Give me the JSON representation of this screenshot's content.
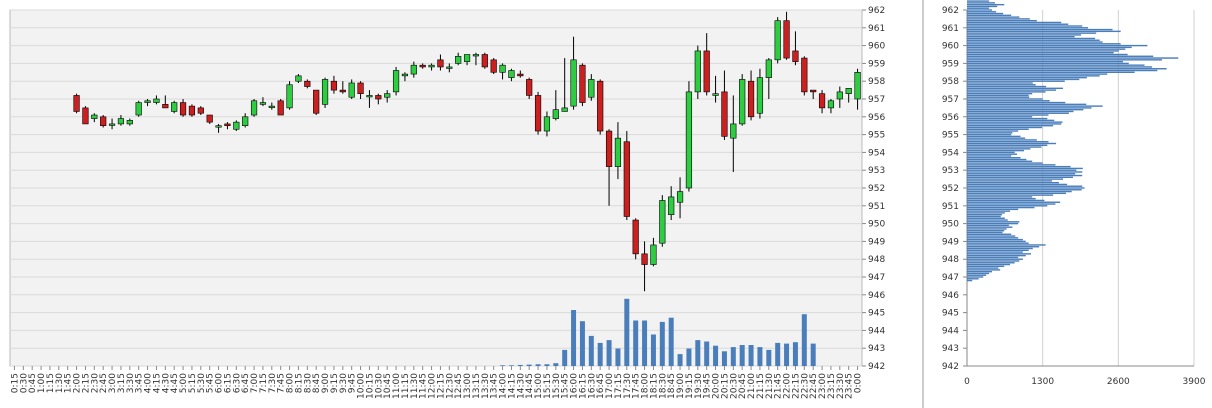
{
  "chart_data": [
    {
      "type": "candlestick",
      "ylim": [
        942,
        962
      ],
      "y_ticks": [
        942,
        943,
        944,
        945,
        946,
        947,
        948,
        949,
        950,
        951,
        952,
        953,
        954,
        955,
        956,
        957,
        958,
        959,
        960,
        961,
        962
      ],
      "grid": true,
      "up_color": "#2ECC40",
      "down_color": "#CC1F1F",
      "background_color": "#F2F2F2",
      "volume_color": "#4A7EBB",
      "volume_axis_max": 1000,
      "x_labels": [
        "0:15",
        "0:30",
        "0:45",
        "1:00",
        "1:15",
        "1:30",
        "1:45",
        "2:00",
        "2:15",
        "2:30",
        "2:45",
        "3:00",
        "3:15",
        "3:30",
        "3:45",
        "4:00",
        "4:15",
        "4:30",
        "4:45",
        "5:00",
        "5:15",
        "5:30",
        "5:45",
        "6:00",
        "6:15",
        "6:30",
        "6:45",
        "7:00",
        "7:15",
        "7:30",
        "7:45",
        "8:00",
        "8:15",
        "8:30",
        "8:45",
        "9:00",
        "9:15",
        "9:30",
        "9:45",
        "10:00",
        "10:15",
        "10:30",
        "10:45",
        "11:00",
        "11:15",
        "11:30",
        "11:45",
        "12:00",
        "12:15",
        "12:30",
        "12:45",
        "13:00",
        "13:15",
        "13:30",
        "13:45",
        "14:00",
        "14:15",
        "14:30",
        "14:45",
        "15:00",
        "15:15",
        "15:30",
        "15:45",
        "16:00",
        "16:15",
        "16:30",
        "16:45",
        "17:00",
        "17:15",
        "17:30",
        "17:45",
        "18:00",
        "18:15",
        "18:30",
        "18:45",
        "19:00",
        "19:15",
        "19:30",
        "19:45",
        "20:00",
        "20:15",
        "20:30",
        "20:45",
        "21:00",
        "21:15",
        "21:30",
        "21:45",
        "22:00",
        "22:15",
        "22:30",
        "22:45",
        "23:00",
        "23:15",
        "23:30",
        "23:45",
        "0:00"
      ],
      "candles": [
        {
          "x": "2:00",
          "o": 957.2,
          "h": 957.3,
          "l": 956.2,
          "c": 956.3
        },
        {
          "x": "2:15",
          "o": 956.5,
          "h": 956.6,
          "l": 955.6,
          "c": 955.6
        },
        {
          "x": "2:30",
          "o": 955.9,
          "h": 956.2,
          "l": 955.7,
          "c": 956.1
        },
        {
          "x": "2:45",
          "o": 956.0,
          "h": 956.1,
          "l": 955.4,
          "c": 955.5
        },
        {
          "x": "3:00",
          "o": 955.6,
          "h": 955.9,
          "l": 955.3,
          "c": 955.6
        },
        {
          "x": "3:15",
          "o": 955.6,
          "h": 956.1,
          "l": 955.5,
          "c": 955.9
        },
        {
          "x": "3:30",
          "o": 955.6,
          "h": 955.9,
          "l": 955.5,
          "c": 955.8
        },
        {
          "x": "3:45",
          "o": 956.1,
          "h": 956.9,
          "l": 956.0,
          "c": 956.8
        },
        {
          "x": "4:00",
          "o": 956.8,
          "h": 957.0,
          "l": 956.6,
          "c": 956.9
        },
        {
          "x": "4:15",
          "o": 956.8,
          "h": 957.2,
          "l": 956.7,
          "c": 957.0
        },
        {
          "x": "4:30",
          "o": 956.7,
          "h": 957.2,
          "l": 956.5,
          "c": 956.5
        },
        {
          "x": "4:45",
          "o": 956.3,
          "h": 956.9,
          "l": 956.2,
          "c": 956.8
        },
        {
          "x": "5:00",
          "o": 956.8,
          "h": 957.0,
          "l": 956.0,
          "c": 956.1
        },
        {
          "x": "5:15",
          "o": 956.6,
          "h": 956.7,
          "l": 956.0,
          "c": 956.1
        },
        {
          "x": "5:30",
          "o": 956.5,
          "h": 956.6,
          "l": 956.1,
          "c": 956.2
        },
        {
          "x": "5:45",
          "o": 956.1,
          "h": 956.1,
          "l": 955.6,
          "c": 955.7
        },
        {
          "x": "6:00",
          "o": 955.5,
          "h": 955.6,
          "l": 955.1,
          "c": 955.5
        },
        {
          "x": "6:15",
          "o": 955.6,
          "h": 955.7,
          "l": 955.3,
          "c": 955.5
        },
        {
          "x": "6:30",
          "o": 955.3,
          "h": 955.8,
          "l": 955.2,
          "c": 955.7
        },
        {
          "x": "6:45",
          "o": 955.5,
          "h": 956.2,
          "l": 955.4,
          "c": 956.0
        },
        {
          "x": "7:00",
          "o": 956.1,
          "h": 957.0,
          "l": 956.0,
          "c": 956.9
        },
        {
          "x": "7:15",
          "o": 956.7,
          "h": 957.1,
          "l": 956.6,
          "c": 956.8
        },
        {
          "x": "7:30",
          "o": 956.6,
          "h": 956.8,
          "l": 956.4,
          "c": 956.6
        },
        {
          "x": "7:45",
          "o": 956.9,
          "h": 957.0,
          "l": 956.1,
          "c": 956.1
        },
        {
          "x": "8:00",
          "o": 956.5,
          "h": 958.0,
          "l": 956.4,
          "c": 957.8
        },
        {
          "x": "8:15",
          "o": 958.0,
          "h": 958.4,
          "l": 957.9,
          "c": 958.3
        },
        {
          "x": "8:30",
          "o": 958.0,
          "h": 958.1,
          "l": 957.6,
          "c": 957.7
        },
        {
          "x": "8:45",
          "o": 957.5,
          "h": 957.5,
          "l": 956.1,
          "c": 956.2
        },
        {
          "x": "9:00",
          "o": 956.7,
          "h": 958.2,
          "l": 956.5,
          "c": 958.1
        },
        {
          "x": "9:15",
          "o": 958.0,
          "h": 958.3,
          "l": 957.3,
          "c": 957.5
        },
        {
          "x": "9:30",
          "o": 957.5,
          "h": 958.0,
          "l": 957.3,
          "c": 957.4
        },
        {
          "x": "9:45",
          "o": 957.1,
          "h": 958.1,
          "l": 957.0,
          "c": 957.9
        },
        {
          "x": "10:00",
          "o": 957.9,
          "h": 958.0,
          "l": 957.0,
          "c": 957.3
        },
        {
          "x": "10:15",
          "o": 957.2,
          "h": 957.5,
          "l": 956.5,
          "c": 957.2
        },
        {
          "x": "10:30",
          "o": 957.2,
          "h": 957.3,
          "l": 956.7,
          "c": 957.0
        },
        {
          "x": "10:45",
          "o": 957.1,
          "h": 957.5,
          "l": 956.8,
          "c": 957.3
        },
        {
          "x": "11:00",
          "o": 957.4,
          "h": 958.8,
          "l": 957.2,
          "c": 958.6
        },
        {
          "x": "11:15",
          "o": 958.3,
          "h": 958.5,
          "l": 958.0,
          "c": 958.4
        },
        {
          "x": "11:30",
          "o": 958.4,
          "h": 959.1,
          "l": 958.2,
          "c": 958.9
        },
        {
          "x": "11:45",
          "o": 958.9,
          "h": 959.0,
          "l": 958.7,
          "c": 958.8
        },
        {
          "x": "12:00",
          "o": 958.8,
          "h": 959.0,
          "l": 958.6,
          "c": 958.9
        },
        {
          "x": "12:15",
          "o": 959.2,
          "h": 959.5,
          "l": 958.6,
          "c": 958.8
        },
        {
          "x": "12:30",
          "o": 958.8,
          "h": 959.0,
          "l": 958.5,
          "c": 958.8
        },
        {
          "x": "12:45",
          "o": 959.0,
          "h": 959.6,
          "l": 958.9,
          "c": 959.4
        },
        {
          "x": "13:00",
          "o": 959.1,
          "h": 959.5,
          "l": 958.9,
          "c": 959.5
        },
        {
          "x": "13:15",
          "o": 959.5,
          "h": 959.6,
          "l": 958.9,
          "c": 959.5
        },
        {
          "x": "13:30",
          "o": 959.5,
          "h": 959.6,
          "l": 958.7,
          "c": 958.8
        },
        {
          "x": "13:45",
          "o": 959.2,
          "h": 959.3,
          "l": 958.4,
          "c": 958.5
        },
        {
          "x": "14:00",
          "o": 958.5,
          "h": 959.0,
          "l": 958.1,
          "c": 958.9
        },
        {
          "x": "14:15",
          "o": 958.2,
          "h": 958.7,
          "l": 958.0,
          "c": 958.6
        },
        {
          "x": "14:30",
          "o": 958.4,
          "h": 958.6,
          "l": 958.2,
          "c": 958.3
        },
        {
          "x": "14:45",
          "o": 958.1,
          "h": 958.2,
          "l": 957.0,
          "c": 957.2
        },
        {
          "x": "15:00",
          "o": 957.2,
          "h": 957.4,
          "l": 955.0,
          "c": 955.2
        },
        {
          "x": "15:15",
          "o": 955.2,
          "h": 956.3,
          "l": 954.9,
          "c": 956.0
        },
        {
          "x": "15:30",
          "o": 955.9,
          "h": 957.5,
          "l": 955.8,
          "c": 956.4
        },
        {
          "x": "15:45",
          "o": 956.3,
          "h": 959.3,
          "l": 956.3,
          "c": 956.5
        },
        {
          "x": "16:00",
          "o": 956.6,
          "h": 960.5,
          "l": 956.4,
          "c": 959.2
        },
        {
          "x": "16:15",
          "o": 958.9,
          "h": 959.0,
          "l": 956.6,
          "c": 956.8
        },
        {
          "x": "16:30",
          "o": 957.1,
          "h": 958.4,
          "l": 956.9,
          "c": 958.1
        },
        {
          "x": "16:45",
          "o": 958.0,
          "h": 958.1,
          "l": 955.0,
          "c": 955.2
        },
        {
          "x": "17:00",
          "o": 955.2,
          "h": 955.3,
          "l": 951.0,
          "c": 953.2
        },
        {
          "x": "17:15",
          "o": 953.2,
          "h": 955.7,
          "l": 952.5,
          "c": 954.8
        },
        {
          "x": "17:30",
          "o": 954.6,
          "h": 955.2,
          "l": 950.2,
          "c": 950.4
        },
        {
          "x": "17:45",
          "o": 950.2,
          "h": 950.3,
          "l": 948.0,
          "c": 948.3
        },
        {
          "x": "18:00",
          "o": 948.3,
          "h": 949.0,
          "l": 946.2,
          "c": 947.7
        },
        {
          "x": "18:15",
          "o": 947.7,
          "h": 949.2,
          "l": 947.6,
          "c": 948.8
        },
        {
          "x": "18:30",
          "o": 948.9,
          "h": 951.6,
          "l": 948.7,
          "c": 951.3
        },
        {
          "x": "18:45",
          "o": 950.5,
          "h": 952.1,
          "l": 950.2,
          "c": 951.5
        },
        {
          "x": "19:00",
          "o": 951.2,
          "h": 952.6,
          "l": 950.3,
          "c": 951.8
        },
        {
          "x": "19:15",
          "o": 952.0,
          "h": 958.0,
          "l": 951.8,
          "c": 957.4
        },
        {
          "x": "19:30",
          "o": 957.4,
          "h": 960.0,
          "l": 957.0,
          "c": 959.7
        },
        {
          "x": "19:45",
          "o": 959.7,
          "h": 960.7,
          "l": 957.2,
          "c": 957.4
        },
        {
          "x": "20:00",
          "o": 957.2,
          "h": 958.3,
          "l": 956.8,
          "c": 957.3
        },
        {
          "x": "20:15",
          "o": 957.4,
          "h": 958.6,
          "l": 954.7,
          "c": 954.9
        },
        {
          "x": "20:30",
          "o": 954.8,
          "h": 957.2,
          "l": 952.9,
          "c": 955.6
        },
        {
          "x": "20:45",
          "o": 955.6,
          "h": 958.4,
          "l": 955.5,
          "c": 958.1
        },
        {
          "x": "21:00",
          "o": 958.0,
          "h": 958.6,
          "l": 955.8,
          "c": 956.0
        },
        {
          "x": "21:15",
          "o": 956.2,
          "h": 958.7,
          "l": 955.9,
          "c": 958.2
        },
        {
          "x": "21:30",
          "o": 958.2,
          "h": 959.3,
          "l": 957.0,
          "c": 959.2
        },
        {
          "x": "21:45",
          "o": 959.2,
          "h": 961.6,
          "l": 959.0,
          "c": 961.4
        },
        {
          "x": "22:00",
          "o": 961.4,
          "h": 961.9,
          "l": 959.2,
          "c": 959.3
        },
        {
          "x": "22:15",
          "o": 959.7,
          "h": 960.8,
          "l": 958.9,
          "c": 959.1
        },
        {
          "x": "22:30",
          "o": 959.3,
          "h": 959.4,
          "l": 957.2,
          "c": 957.4
        },
        {
          "x": "22:45",
          "o": 957.5,
          "h": 957.5,
          "l": 957.0,
          "c": 957.4
        },
        {
          "x": "23:00",
          "o": 957.3,
          "h": 957.5,
          "l": 956.2,
          "c": 956.5
        },
        {
          "x": "23:15",
          "o": 956.5,
          "h": 957.0,
          "l": 956.2,
          "c": 956.9
        },
        {
          "x": "23:30",
          "o": 957.0,
          "h": 957.7,
          "l": 956.5,
          "c": 957.4
        },
        {
          "x": "23:45",
          "o": 957.3,
          "h": 957.6,
          "l": 956.8,
          "c": 957.6
        },
        {
          "x": "0:00",
          "o": 957.0,
          "h": 958.7,
          "l": 956.4,
          "c": 958.5
        }
      ],
      "volume": [
        {
          "x": "14:00",
          "v": 10
        },
        {
          "x": "14:15",
          "v": 10
        },
        {
          "x": "14:30",
          "v": 15
        },
        {
          "x": "14:45",
          "v": 20
        },
        {
          "x": "15:00",
          "v": 25
        },
        {
          "x": "15:15",
          "v": 25
        },
        {
          "x": "15:30",
          "v": 40
        },
        {
          "x": "15:45",
          "v": 230
        },
        {
          "x": "16:00",
          "v": 800
        },
        {
          "x": "16:15",
          "v": 640
        },
        {
          "x": "16:30",
          "v": 430
        },
        {
          "x": "16:45",
          "v": 330
        },
        {
          "x": "17:00",
          "v": 370
        },
        {
          "x": "17:15",
          "v": 250
        },
        {
          "x": "17:30",
          "v": 960
        },
        {
          "x": "17:45",
          "v": 650
        },
        {
          "x": "18:00",
          "v": 650
        },
        {
          "x": "18:15",
          "v": 450
        },
        {
          "x": "18:30",
          "v": 630
        },
        {
          "x": "18:45",
          "v": 690
        },
        {
          "x": "19:00",
          "v": 170
        },
        {
          "x": "19:15",
          "v": 250
        },
        {
          "x": "19:30",
          "v": 370
        },
        {
          "x": "19:45",
          "v": 350
        },
        {
          "x": "20:00",
          "v": 290
        },
        {
          "x": "20:15",
          "v": 210
        },
        {
          "x": "20:30",
          "v": 270
        },
        {
          "x": "20:45",
          "v": 300
        },
        {
          "x": "21:00",
          "v": 300
        },
        {
          "x": "21:15",
          "v": 270
        },
        {
          "x": "21:30",
          "v": 230
        },
        {
          "x": "21:45",
          "v": 330
        },
        {
          "x": "22:00",
          "v": 320
        },
        {
          "x": "22:15",
          "v": 340
        },
        {
          "x": "22:30",
          "v": 740
        },
        {
          "x": "22:45",
          "v": 320
        }
      ]
    },
    {
      "type": "bar",
      "orientation": "horizontal",
      "title": "",
      "xlabel": "",
      "ylabel": "",
      "xlim": [
        0,
        3900
      ],
      "x_ticks": [
        0,
        1300,
        2600,
        3900
      ],
      "ylim": [
        942,
        962
      ],
      "y_ticks": [
        942,
        943,
        944,
        945,
        946,
        947,
        948,
        949,
        950,
        951,
        952,
        953,
        954,
        955,
        956,
        957,
        958,
        959,
        960,
        961,
        962
      ],
      "grid": true,
      "bar_color": "#4A7EBB",
      "bin_width": 0.1,
      "price_start": 946.8,
      "values": [
        90,
        200,
        280,
        330,
        380,
        430,
        570,
        540,
        640,
        740,
        820,
        900,
        960,
        880,
        1010,
        1100,
        960,
        1060,
        1130,
        1240,
        1350,
        1060,
        1010,
        960,
        880,
        830,
        760,
        610,
        640,
        680,
        780,
        720,
        880,
        900,
        700,
        650,
        580,
        600,
        650,
        740,
        880,
        1160,
        1380,
        1520,
        1600,
        1330,
        1180,
        1120,
        1480,
        1700,
        1800,
        1970,
        2020,
        1980,
        1720,
        1580,
        1460,
        1650,
        1820,
        1980,
        1860,
        1980,
        1880,
        1990,
        1780,
        1520,
        1300,
        1120,
        1020,
        920,
        760,
        860,
        820,
        980,
        1090,
        1280,
        1380,
        1530,
        1400,
        1200,
        1000,
        920,
        760,
        780,
        880,
        1060,
        1290,
        1480,
        1620,
        1640,
        1500,
        1380,
        1120,
        1400,
        1750,
        1830,
        2000,
        2140,
        2330,
        2050,
        1690,
        1420,
        1300,
        1070,
        1060,
        1120,
        1350,
        1530,
        1650,
        1360,
        1180,
        1130,
        1680,
        1930,
        2060,
        2280,
        2410,
        2880,
        3270,
        3430,
        3180,
        3050,
        2780,
        2680,
        3350,
        3630,
        3200,
        2760,
        2520,
        2610,
        2720,
        2830,
        3100,
        2640,
        2330,
        2280,
        2200,
        1850,
        1960,
        2220,
        2640,
        2500,
        2080,
        1980,
        1740,
        1620,
        1200,
        1080,
        900,
        760,
        620,
        500,
        430,
        380,
        520,
        640,
        480,
        380,
        300,
        240,
        160,
        120,
        60
      ]
    }
  ]
}
